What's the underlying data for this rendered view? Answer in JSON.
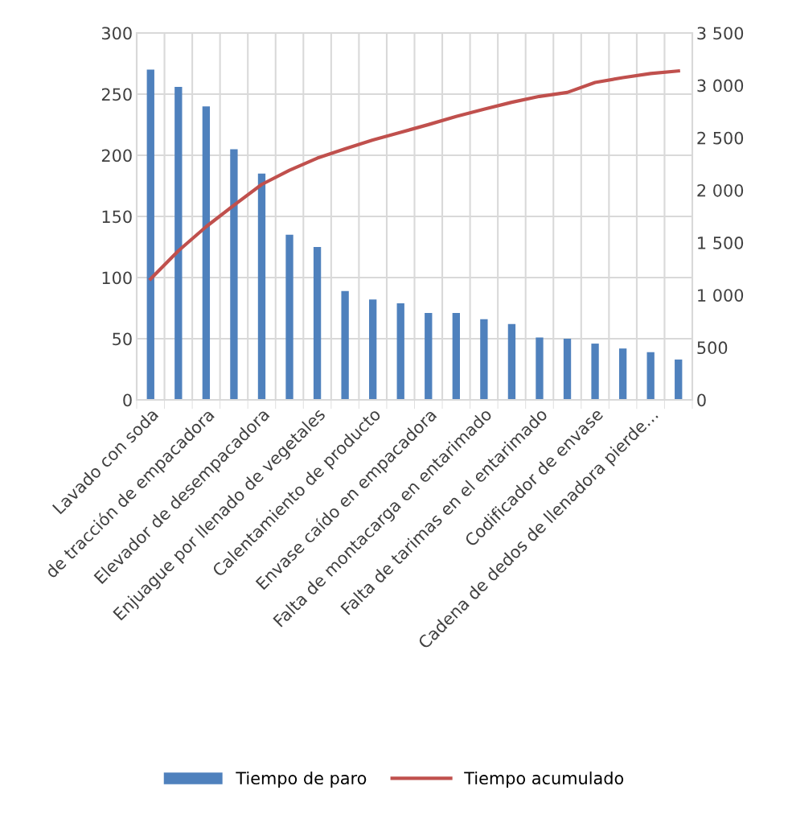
{
  "chart_data": {
    "type": "bar",
    "categories": [
      "Lavado con soda",
      null,
      "de tracción de empacadora",
      null,
      "Elevador de desempacadora",
      null,
      "Enjuague por llenado de vegetales",
      null,
      "Calentamiento de producto",
      null,
      "Envase caído en empacadora",
      null,
      "Falta de montacarga en entarimado",
      null,
      "Falta de tarimas en el entarimado",
      null,
      "Codificador de envase",
      null,
      "Cadena de dedos de llenadora pierde…",
      null
    ],
    "series": [
      {
        "name": "Tiempo de paro",
        "color": "#4f81bd",
        "values": [
          270,
          256,
          240,
          205,
          185,
          135,
          125,
          89,
          82,
          79,
          71,
          71,
          66,
          62,
          51,
          50,
          46,
          42,
          39,
          33
        ]
      },
      {
        "name": "Tiempo acumulado",
        "type": "line",
        "axis": "y2",
        "color": "#c0504d",
        "values": [
          1153,
          1422,
          1652,
          1857,
          2055,
          2190,
          2306,
          2395,
          2480,
          2552,
          2626,
          2703,
          2772,
          2839,
          2895,
          2933,
          3028,
          3074,
          3113,
          3138
        ]
      }
    ],
    "ylim": [
      0,
      300
    ],
    "yticks": [
      0,
      50,
      100,
      150,
      200,
      250,
      300
    ],
    "y2lim": [
      0,
      3500
    ],
    "y2ticks": [
      0,
      500,
      {
        "value": 1000,
        "label": "1 000"
      },
      {
        "value": 1500,
        "label": "1 500"
      },
      {
        "value": 2000,
        "label": "2 000"
      },
      {
        "value": 2500,
        "label": "2 500"
      },
      {
        "value": 3000,
        "label": "3 000"
      },
      {
        "value": 3500,
        "label": "3 500"
      }
    ],
    "grid": true,
    "legend": "bottom",
    "marker": "none",
    "line_style": "solid"
  }
}
